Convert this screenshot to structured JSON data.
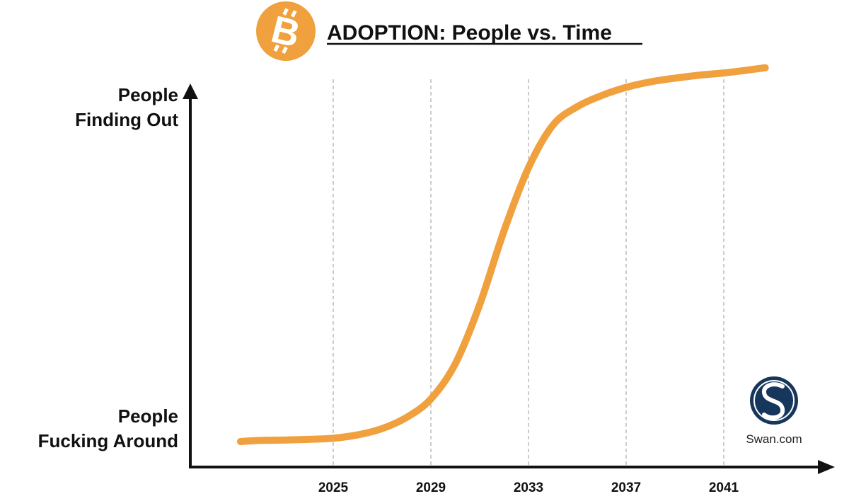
{
  "header": {
    "title": "ADOPTION: People vs. Time",
    "logo_icon": "bitcoin-logo-icon"
  },
  "watermark": {
    "text": "Swan.com",
    "icon": "swan-logo-icon",
    "color": "#17365c"
  },
  "colors": {
    "curve": "#f0a03c",
    "bitcoin": "#f0a03c",
    "axis": "#111111",
    "grid": "#aaaaaa"
  },
  "chart_data": {
    "type": "line",
    "title": "ADOPTION: People vs. Time",
    "xlabel": "",
    "ylabel": "",
    "y_top_label": [
      "People",
      "Finding Out"
    ],
    "y_bottom_label": [
      "People",
      "Fucking Around"
    ],
    "x_ticks": [
      "2025",
      "2029",
      "2033",
      "2037",
      "2041"
    ],
    "grid": "vertical dashed lines at x ticks",
    "series": [
      {
        "x": [
          2021.2,
          2022,
          2023,
          2024,
          2025,
          2026,
          2027,
          2028,
          2029,
          2030,
          2031,
          2032,
          2033,
          2034,
          2035,
          2036,
          2037,
          2038,
          2039,
          2040,
          2041,
          2042,
          2042.7
        ],
        "y": [
          0.0,
          0.003,
          0.004,
          0.006,
          0.009,
          0.018,
          0.035,
          0.065,
          0.115,
          0.21,
          0.37,
          0.57,
          0.74,
          0.855,
          0.905,
          0.935,
          0.957,
          0.972,
          0.982,
          0.99,
          0.996,
          1.004,
          1.01
        ]
      }
    ]
  }
}
